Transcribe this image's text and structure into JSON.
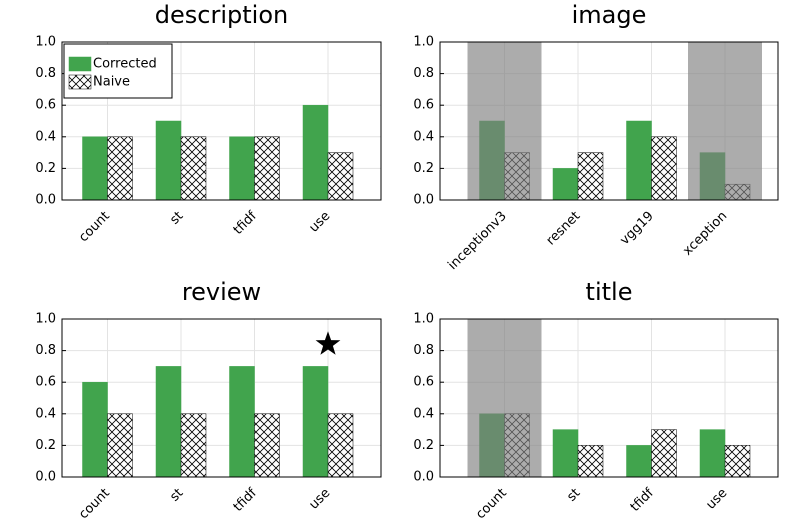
{
  "chart_data": [
    {
      "type": "bar",
      "title": "description",
      "categories": [
        "count",
        "st",
        "tfidf",
        "use"
      ],
      "series": [
        {
          "name": "Corrected",
          "color": "#41a44d",
          "values": [
            0.4,
            0.5,
            0.4,
            0.6
          ]
        },
        {
          "name": "Naive",
          "color": "#000000",
          "hatch": true,
          "values": [
            0.4,
            0.4,
            0.4,
            0.3
          ]
        }
      ],
      "ylim": [
        0,
        1
      ],
      "yticks": [
        {
          "value": 0,
          "label": "0.0"
        },
        {
          "value": 0.2,
          "label": "0.2"
        },
        {
          "value": 0.4,
          "label": "0.4"
        },
        {
          "value": 0.6,
          "label": "0.6"
        },
        {
          "value": 0.8,
          "label": "0.8"
        },
        {
          "value": 1,
          "label": "1.0"
        }
      ],
      "grid": true,
      "legend": "top left",
      "highlight": [
        false,
        false,
        false,
        false
      ],
      "star": [
        false,
        false,
        false,
        false
      ]
    },
    {
      "type": "bar",
      "title": "image",
      "categories": [
        "inceptionv3",
        "resnet",
        "vgg19",
        "xception"
      ],
      "series": [
        {
          "color": "#41a44d",
          "values": [
            0.5,
            0.2,
            0.5,
            0.3
          ]
        },
        {
          "color": "#000000",
          "hatch": true,
          "values": [
            0.3,
            0.3,
            0.4,
            0.1
          ]
        }
      ],
      "ylim": [
        0,
        1
      ],
      "yticks": [
        {
          "value": 0,
          "label": "0.0"
        },
        {
          "value": 0.2,
          "label": "0.2"
        },
        {
          "value": 0.4,
          "label": "0.4"
        },
        {
          "value": 0.6,
          "label": "0.6"
        },
        {
          "value": 0.8,
          "label": "0.8"
        },
        {
          "value": 1,
          "label": "1.0"
        }
      ],
      "grid": true,
      "highlight": [
        true,
        false,
        false,
        true
      ],
      "star": [
        false,
        false,
        false,
        false
      ]
    },
    {
      "type": "bar",
      "title": "review",
      "categories": [
        "count",
        "st",
        "tfidf",
        "use"
      ],
      "series": [
        {
          "color": "#41a44d",
          "values": [
            0.6,
            0.7,
            0.7,
            0.7
          ]
        },
        {
          "color": "#000000",
          "hatch": true,
          "values": [
            0.4,
            0.4,
            0.4,
            0.4
          ]
        }
      ],
      "ylim": [
        0,
        1
      ],
      "yticks": [
        {
          "value": 0,
          "label": "0.0"
        },
        {
          "value": 0.2,
          "label": "0.2"
        },
        {
          "value": 0.4,
          "label": "0.4"
        },
        {
          "value": 0.6,
          "label": "0.6"
        },
        {
          "value": 0.8,
          "label": "0.8"
        },
        {
          "value": 1,
          "label": "1.0"
        }
      ],
      "grid": true,
      "highlight": [
        false,
        false,
        false,
        false
      ],
      "star": [
        false,
        false,
        false,
        true
      ]
    },
    {
      "type": "bar",
      "title": "title",
      "categories": [
        "count",
        "st",
        "tfidf",
        "use"
      ],
      "series": [
        {
          "color": "#41a44d",
          "values": [
            0.4,
            0.3,
            0.2,
            0.3
          ]
        },
        {
          "color": "#000000",
          "hatch": true,
          "values": [
            0.4,
            0.2,
            0.3,
            0.2
          ]
        }
      ],
      "ylim": [
        0,
        1
      ],
      "yticks": [
        {
          "value": 0,
          "label": "0.0"
        },
        {
          "value": 0.2,
          "label": "0.2"
        },
        {
          "value": 0.4,
          "label": "0.4"
        },
        {
          "value": 0.6,
          "label": "0.6"
        },
        {
          "value": 0.8,
          "label": "0.8"
        },
        {
          "value": 1,
          "label": "1.0"
        }
      ],
      "grid": true,
      "highlight": [
        true,
        false,
        false,
        false
      ],
      "star": [
        false,
        false,
        false,
        false
      ]
    }
  ]
}
